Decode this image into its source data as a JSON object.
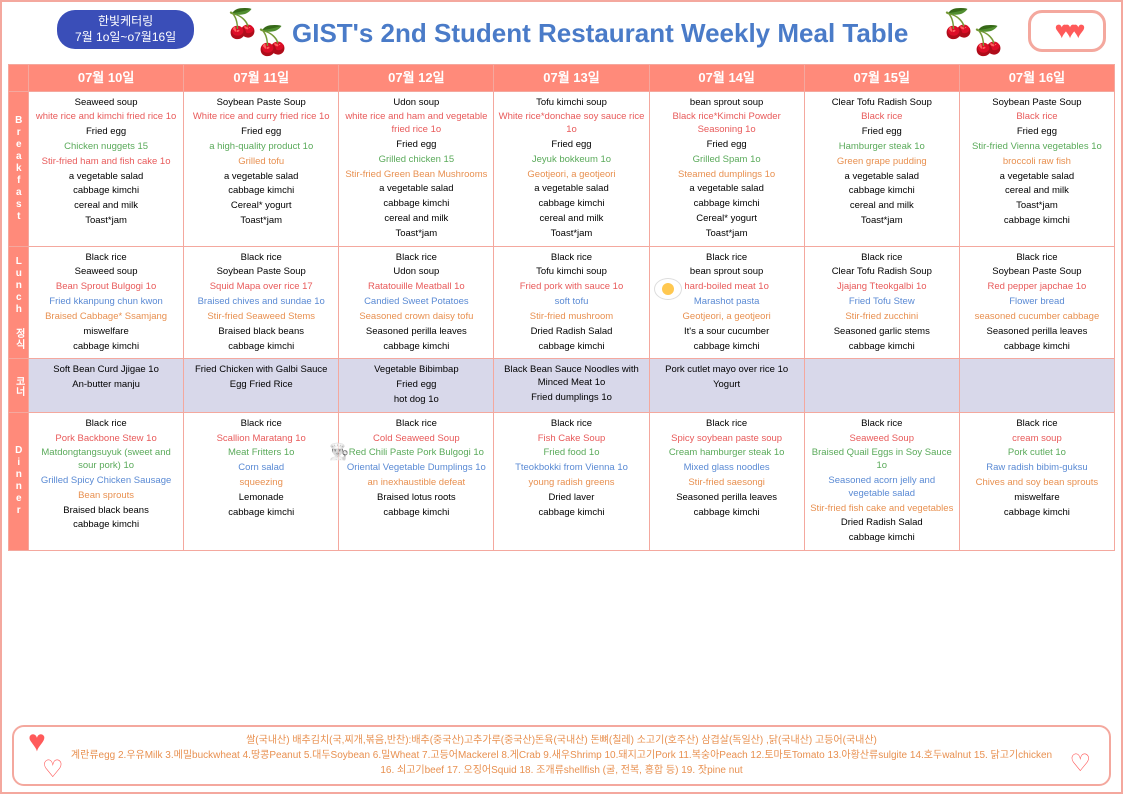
{
  "header": {
    "badge_line1": "한빛케터링",
    "badge_line2": "7월 1o일~o7월16일",
    "title": "GIST's 2nd Student Restaurant Weekly Meal Table"
  },
  "dates": [
    "07월 10일",
    "07월 11일",
    "07월 12일",
    "07월 13일",
    "07월 14일",
    "07월 15일",
    "07월 16일"
  ],
  "sections": {
    "b": "Breakfast",
    "l": "Lunch",
    "k": "정식",
    "c": "코너",
    "d": "Dinner"
  },
  "breakfast": [
    [
      {
        "t": "Seaweed soup",
        "c": "black"
      },
      {
        "t": "white rice and kimchi fried rice 1o",
        "c": "red"
      },
      {
        "t": "Fried egg",
        "c": "black"
      },
      {
        "t": "Chicken nuggets 15",
        "c": "green"
      },
      {
        "t": "Stir-fried ham and fish cake 1o",
        "c": "red"
      },
      {
        "t": "a vegetable salad",
        "c": "black"
      },
      {
        "t": "cabbage kimchi",
        "c": "black"
      },
      {
        "t": "cereal and milk",
        "c": "black"
      },
      {
        "t": "Toast*jam",
        "c": "black"
      }
    ],
    [
      {
        "t": "Soybean Paste Soup",
        "c": "black"
      },
      {
        "t": "White rice and curry fried rice 1o",
        "c": "red"
      },
      {
        "t": "Fried egg",
        "c": "black"
      },
      {
        "t": "a high-quality product 1o",
        "c": "green"
      },
      {
        "t": "Grilled tofu",
        "c": "orange"
      },
      {
        "t": "a vegetable salad",
        "c": "black"
      },
      {
        "t": "cabbage kimchi",
        "c": "black"
      },
      {
        "t": "Cereal* yogurt",
        "c": "black"
      },
      {
        "t": "Toast*jam",
        "c": "black"
      }
    ],
    [
      {
        "t": "Udon soup",
        "c": "black"
      },
      {
        "t": "white rice and ham and vegetable fried rice 1o",
        "c": "red"
      },
      {
        "t": "Fried egg",
        "c": "black"
      },
      {
        "t": "Grilled chicken 15",
        "c": "green"
      },
      {
        "t": "Stir-fried Green Bean Mushrooms",
        "c": "orange"
      },
      {
        "t": "a vegetable salad",
        "c": "black"
      },
      {
        "t": "cabbage kimchi",
        "c": "black"
      },
      {
        "t": "cereal and milk",
        "c": "black"
      },
      {
        "t": "Toast*jam",
        "c": "black"
      }
    ],
    [
      {
        "t": "Tofu kimchi soup",
        "c": "black"
      },
      {
        "t": "White rice*donchae soy sauce rice 1o",
        "c": "red"
      },
      {
        "t": "Fried egg",
        "c": "black"
      },
      {
        "t": "Jeyuk bokkeum 1o",
        "c": "green"
      },
      {
        "t": "Geotjeori, a geotjeori",
        "c": "orange"
      },
      {
        "t": "a vegetable salad",
        "c": "black"
      },
      {
        "t": "cabbage kimchi",
        "c": "black"
      },
      {
        "t": "cereal and milk",
        "c": "black"
      },
      {
        "t": "Toast*jam",
        "c": "black"
      }
    ],
    [
      {
        "t": "bean sprout soup",
        "c": "black"
      },
      {
        "t": "Black rice*Kimchi Powder Seasoning 1o",
        "c": "red"
      },
      {
        "t": "Fried egg",
        "c": "black"
      },
      {
        "t": "Grilled Spam 1o",
        "c": "green"
      },
      {
        "t": "Steamed dumplings 1o",
        "c": "orange"
      },
      {
        "t": "a vegetable salad",
        "c": "black"
      },
      {
        "t": "cabbage kimchi",
        "c": "black"
      },
      {
        "t": "Cereal* yogurt",
        "c": "black"
      },
      {
        "t": "Toast*jam",
        "c": "black"
      }
    ],
    [
      {
        "t": "Clear Tofu Radish Soup",
        "c": "black"
      },
      {
        "t": "Black rice",
        "c": "red"
      },
      {
        "t": "Fried egg",
        "c": "black"
      },
      {
        "t": "Hamburger steak 1o",
        "c": "green"
      },
      {
        "t": "Green grape pudding",
        "c": "orange"
      },
      {
        "t": "a vegetable salad",
        "c": "black"
      },
      {
        "t": "cabbage kimchi",
        "c": "black"
      },
      {
        "t": "cereal and milk",
        "c": "black"
      },
      {
        "t": "Toast*jam",
        "c": "black"
      }
    ],
    [
      {
        "t": "Soybean Paste Soup",
        "c": "black"
      },
      {
        "t": "Black rice",
        "c": "red"
      },
      {
        "t": "Fried egg",
        "c": "black"
      },
      {
        "t": "Stir-fried Vienna vegetables 1o",
        "c": "green"
      },
      {
        "t": "broccoli raw fish",
        "c": "orange"
      },
      {
        "t": "a vegetable salad",
        "c": "black"
      },
      {
        "t": "cereal and milk",
        "c": "black"
      },
      {
        "t": "Toast*jam",
        "c": "black"
      },
      {
        "t": "cabbage kimchi",
        "c": "black"
      }
    ]
  ],
  "lunch": [
    [
      {
        "t": "Black rice",
        "c": "black"
      },
      {
        "t": "Seaweed soup",
        "c": "black"
      },
      {
        "t": "Bean Sprout Bulgogi 1o",
        "c": "red"
      },
      {
        "t": "Fried kkanpung chun kwon",
        "c": "blue"
      },
      {
        "t": "Braised Cabbage* Ssamjang",
        "c": "orange"
      },
      {
        "t": "miswelfare",
        "c": "black"
      },
      {
        "t": "cabbage kimchi",
        "c": "black"
      }
    ],
    [
      {
        "t": "Black rice",
        "c": "black"
      },
      {
        "t": "Soybean Paste Soup",
        "c": "black"
      },
      {
        "t": "Squid Mapa over rice 17",
        "c": "red"
      },
      {
        "t": "Braised chives and sundae 1o",
        "c": "blue"
      },
      {
        "t": "Stir-fried Seaweed Stems",
        "c": "orange"
      },
      {
        "t": "Braised black beans",
        "c": "black"
      },
      {
        "t": "cabbage kimchi",
        "c": "black"
      }
    ],
    [
      {
        "t": "Black rice",
        "c": "black"
      },
      {
        "t": "Udon soup",
        "c": "black"
      },
      {
        "t": "Ratatouille Meatball 1o",
        "c": "red"
      },
      {
        "t": "Candied Sweet Potatoes",
        "c": "blue"
      },
      {
        "t": "Seasoned crown daisy tofu",
        "c": "orange"
      },
      {
        "t": "Seasoned perilla leaves",
        "c": "black"
      },
      {
        "t": "cabbage kimchi",
        "c": "black"
      }
    ],
    [
      {
        "t": "Black rice",
        "c": "black"
      },
      {
        "t": "Tofu kimchi soup",
        "c": "black"
      },
      {
        "t": "Fried pork with sauce 1o",
        "c": "red"
      },
      {
        "t": "soft tofu",
        "c": "blue"
      },
      {
        "t": "Stir-fried mushroom",
        "c": "orange"
      },
      {
        "t": "Dried Radish Salad",
        "c": "black"
      },
      {
        "t": "cabbage kimchi",
        "c": "black"
      }
    ],
    [
      {
        "t": "Black rice",
        "c": "black"
      },
      {
        "t": "bean sprout soup",
        "c": "black"
      },
      {
        "t": "hard-boiled meat 1o",
        "c": "red"
      },
      {
        "t": "Marashot pasta",
        "c": "blue"
      },
      {
        "t": "Geotjeori, a geotjeori",
        "c": "orange"
      },
      {
        "t": "It's a sour cucumber",
        "c": "black"
      },
      {
        "t": "cabbage kimchi",
        "c": "black"
      }
    ],
    [
      {
        "t": "Black rice",
        "c": "black"
      },
      {
        "t": "Clear Tofu Radish Soup",
        "c": "black"
      },
      {
        "t": "Jjajang Tteokgalbi 1o",
        "c": "red"
      },
      {
        "t": "Fried Tofu Stew",
        "c": "blue"
      },
      {
        "t": "Stir-fried zucchini",
        "c": "orange"
      },
      {
        "t": "Seasoned garlic stems",
        "c": "black"
      },
      {
        "t": "cabbage kimchi",
        "c": "black"
      }
    ],
    [
      {
        "t": "Black rice",
        "c": "black"
      },
      {
        "t": "Soybean Paste Soup",
        "c": "black"
      },
      {
        "t": "Red pepper japchae 1o",
        "c": "red"
      },
      {
        "t": "Flower bread",
        "c": "blue"
      },
      {
        "t": "seasoned cucumber cabbage",
        "c": "orange"
      },
      {
        "t": "Seasoned perilla leaves",
        "c": "black"
      },
      {
        "t": "cabbage kimchi",
        "c": "black"
      }
    ]
  ],
  "corner": [
    [
      {
        "t": "Soft Bean Curd Jjigae 1o",
        "c": "black"
      },
      {
        "t": "An-butter manju",
        "c": "black"
      }
    ],
    [
      {
        "t": "Fried Chicken with Galbi Sauce",
        "c": "black"
      },
      {
        "t": "Egg Fried Rice",
        "c": "black"
      }
    ],
    [
      {
        "t": "Vegetable Bibimbap",
        "c": "black"
      },
      {
        "t": "Fried egg",
        "c": "black"
      },
      {
        "t": "hot dog 1o",
        "c": "black"
      }
    ],
    [
      {
        "t": "Black Bean Sauce Noodles with Minced Meat 1o",
        "c": "black"
      },
      {
        "t": "Fried dumplings 1o",
        "c": "black"
      }
    ],
    [
      {
        "t": "Pork cutlet mayo over rice 1o",
        "c": "black"
      },
      {
        "t": "Yogurt",
        "c": "black"
      }
    ],
    [],
    []
  ],
  "dinner": [
    [
      {
        "t": "Black rice",
        "c": "black"
      },
      {
        "t": "Pork Backbone Stew 1o",
        "c": "red"
      },
      {
        "t": "Matdongtangsuyuk (sweet and sour pork) 1o",
        "c": "green"
      },
      {
        "t": "Grilled Spicy Chicken Sausage",
        "c": "blue"
      },
      {
        "t": "Bean sprouts",
        "c": "orange"
      },
      {
        "t": "Braised black beans",
        "c": "black"
      },
      {
        "t": "cabbage kimchi",
        "c": "black"
      }
    ],
    [
      {
        "t": "Black rice",
        "c": "black"
      },
      {
        "t": "Scallion Maratang 1o",
        "c": "red"
      },
      {
        "t": "Meat Fritters 1o",
        "c": "green"
      },
      {
        "t": "Corn salad",
        "c": "blue"
      },
      {
        "t": "squeezing",
        "c": "orange"
      },
      {
        "t": "Lemonade",
        "c": "black"
      },
      {
        "t": "cabbage kimchi",
        "c": "black"
      }
    ],
    [
      {
        "t": "Black rice",
        "c": "black"
      },
      {
        "t": "Cold Seaweed Soup",
        "c": "red"
      },
      {
        "t": "Red Chili Paste Pork Bulgogi 1o",
        "c": "green"
      },
      {
        "t": "Oriental Vegetable Dumplings 1o",
        "c": "blue"
      },
      {
        "t": "an inexhaustible defeat",
        "c": "orange"
      },
      {
        "t": "Braised lotus roots",
        "c": "black"
      },
      {
        "t": "cabbage kimchi",
        "c": "black"
      }
    ],
    [
      {
        "t": "Black rice",
        "c": "black"
      },
      {
        "t": "Fish Cake Soup",
        "c": "red"
      },
      {
        "t": "Fried food 1o",
        "c": "green"
      },
      {
        "t": "Tteokbokki from Vienna 1o",
        "c": "blue"
      },
      {
        "t": "young radish greens",
        "c": "orange"
      },
      {
        "t": "Dried laver",
        "c": "black"
      },
      {
        "t": "cabbage kimchi",
        "c": "black"
      }
    ],
    [
      {
        "t": "Black rice",
        "c": "black"
      },
      {
        "t": "Spicy soybean paste soup",
        "c": "red"
      },
      {
        "t": "Cream hamburger steak 1o",
        "c": "green"
      },
      {
        "t": "Mixed glass noodles",
        "c": "blue"
      },
      {
        "t": "Stir-fried saesongi",
        "c": "orange"
      },
      {
        "t": "Seasoned perilla leaves",
        "c": "black"
      },
      {
        "t": "cabbage kimchi",
        "c": "black"
      }
    ],
    [
      {
        "t": "Black rice",
        "c": "black"
      },
      {
        "t": "Seaweed Soup",
        "c": "red"
      },
      {
        "t": "Braised Quail Eggs in Soy Sauce 1o",
        "c": "green"
      },
      {
        "t": "Seasoned acorn jelly and vegetable salad",
        "c": "blue"
      },
      {
        "t": "Stir-fried fish cake and vegetables",
        "c": "orange"
      },
      {
        "t": "Dried Radish Salad",
        "c": "black"
      },
      {
        "t": "cabbage kimchi",
        "c": "black"
      }
    ],
    [
      {
        "t": "Black rice",
        "c": "black"
      },
      {
        "t": "cream soup",
        "c": "red"
      },
      {
        "t": "Pork cutlet 1o",
        "c": "green"
      },
      {
        "t": "Raw radish bibim-guksu",
        "c": "blue"
      },
      {
        "t": "Chives and soy bean sprouts",
        "c": "orange"
      },
      {
        "t": "miswelfare",
        "c": "black"
      },
      {
        "t": "cabbage kimchi",
        "c": "black"
      }
    ]
  ],
  "footer": {
    "line1": "쌀(국내산) 배추김치(국,찌개,볶음,반찬):배추(중국산)고추가루(중국산)돈육(국내산) 돈뼈(칠레) 소고기(호주산) 삼겹살(독일산) ,닭(국내산) 고등어(국내산)",
    "line2": "계란류egg 2.우유Milk 3.메밀buckwheat 4.땅콩Peanut 5.대두Soybean 6.밀Wheat 7.고등어Mackerel 8.게Crab 9.새우Shrimp 10.돼지고기Pork 11.복숭아Peach 12.토마토Tomato 13.아황산류sulgite 14.호두walnut 15. 닭고기chicken 16. 쇠고기beef 17. 오징어Squid 18. 조개류shellfish (굴, 전복, 홍합 등) 19. 잣pine nut"
  }
}
